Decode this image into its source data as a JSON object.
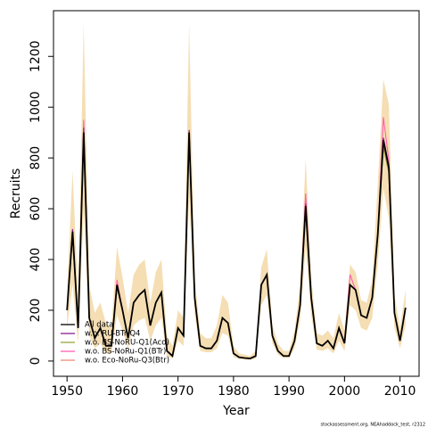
{
  "chart_data": {
    "type": "line",
    "xlabel": "Year",
    "ylabel": "Recruits",
    "footnote": "stockassessment.org, NEAhaddock_test, r2312",
    "x": [
      1950,
      1951,
      1952,
      1953,
      1954,
      1955,
      1956,
      1957,
      1958,
      1959,
      1960,
      1961,
      1962,
      1963,
      1964,
      1965,
      1966,
      1967,
      1968,
      1969,
      1970,
      1971,
      1972,
      1973,
      1974,
      1975,
      1976,
      1977,
      1978,
      1979,
      1980,
      1981,
      1982,
      1983,
      1984,
      1985,
      1986,
      1987,
      1988,
      1989,
      1990,
      1991,
      1992,
      1993,
      1994,
      1995,
      1996,
      1997,
      1998,
      1999,
      2000,
      2001,
      2002,
      2003,
      2004,
      2005,
      2006,
      2007,
      2008,
      2009,
      2010,
      2011
    ],
    "band": {
      "color": "#f5deb3",
      "upper": [
        280,
        750,
        250,
        1330,
        300,
        190,
        230,
        150,
        130,
        450,
        330,
        190,
        340,
        380,
        400,
        230,
        350,
        400,
        100,
        60,
        200,
        170,
        1330,
        330,
        110,
        90,
        90,
        140,
        260,
        230,
        60,
        30,
        25,
        20,
        40,
        370,
        440,
        140,
        70,
        40,
        40,
        120,
        300,
        800,
        330,
        110,
        100,
        120,
        90,
        190,
        120,
        380,
        350,
        240,
        230,
        320,
        700,
        1110,
        1010,
        260,
        130,
        280
      ],
      "lower": [
        130,
        300,
        70,
        600,
        100,
        50,
        70,
        30,
        30,
        180,
        120,
        50,
        140,
        160,
        170,
        80,
        140,
        170,
        20,
        10,
        80,
        60,
        650,
        180,
        40,
        35,
        35,
        50,
        110,
        100,
        15,
        8,
        6,
        5,
        10,
        220,
        260,
        70,
        25,
        12,
        12,
        50,
        160,
        450,
        180,
        45,
        40,
        50,
        30,
        80,
        40,
        220,
        200,
        130,
        120,
        170,
        380,
        680,
        560,
        130,
        50,
        140
      ]
    },
    "series": [
      {
        "name": "All data",
        "color": "#000000",
        "values": [
          200,
          510,
          130,
          900,
          170,
          90,
          130,
          60,
          60,
          300,
          200,
          90,
          230,
          260,
          280,
          140,
          230,
          270,
          40,
          20,
          130,
          100,
          900,
          250,
          60,
          50,
          50,
          80,
          170,
          150,
          30,
          15,
          12,
          10,
          20,
          300,
          340,
          100,
          40,
          20,
          20,
          80,
          220,
          610,
          250,
          70,
          60,
          80,
          50,
          130,
          70,
          300,
          280,
          180,
          170,
          250,
          500,
          870,
          760,
          190,
          80,
          210
        ]
      },
      {
        "name": "w.o. RU-BTr-Q4",
        "color": "#8b1e8f",
        "values": [
          200,
          520,
          130,
          920,
          170,
          90,
          130,
          60,
          60,
          300,
          200,
          90,
          230,
          260,
          280,
          140,
          230,
          270,
          40,
          20,
          130,
          100,
          910,
          250,
          60,
          50,
          50,
          80,
          170,
          150,
          30,
          15,
          12,
          10,
          20,
          300,
          340,
          100,
          40,
          20,
          20,
          80,
          220,
          620,
          250,
          70,
          60,
          80,
          50,
          130,
          70,
          300,
          280,
          180,
          170,
          250,
          500,
          880,
          770,
          190,
          80,
          210
        ]
      },
      {
        "name": "w.o. BS-NoRU-Q1(Aco)",
        "color": "#9aa33c",
        "values": [
          200,
          490,
          130,
          880,
          170,
          90,
          130,
          60,
          60,
          300,
          200,
          90,
          230,
          260,
          280,
          140,
          230,
          270,
          40,
          20,
          130,
          100,
          880,
          250,
          60,
          50,
          50,
          80,
          170,
          150,
          30,
          15,
          12,
          10,
          20,
          300,
          340,
          100,
          40,
          20,
          20,
          80,
          220,
          590,
          250,
          70,
          60,
          80,
          50,
          130,
          70,
          300,
          280,
          180,
          170,
          250,
          500,
          840,
          740,
          190,
          80,
          210
        ]
      },
      {
        "name": "w.o. BS-NoRu-Q1(BTr)",
        "color": "#ff5fb0",
        "values": [
          200,
          520,
          130,
          950,
          170,
          90,
          130,
          60,
          60,
          320,
          200,
          90,
          230,
          260,
          280,
          140,
          230,
          270,
          40,
          20,
          130,
          100,
          910,
          250,
          60,
          50,
          50,
          80,
          170,
          150,
          30,
          15,
          12,
          10,
          20,
          300,
          340,
          100,
          40,
          20,
          20,
          80,
          220,
          660,
          250,
          70,
          60,
          80,
          50,
          130,
          70,
          340,
          280,
          180,
          170,
          250,
          500,
          960,
          790,
          190,
          80,
          210
        ]
      },
      {
        "name": "w.o. Eco-NoRu-Q3(Btr)",
        "color": "#f08878",
        "values": [
          200,
          500,
          130,
          900,
          170,
          90,
          130,
          60,
          60,
          300,
          200,
          90,
          230,
          260,
          280,
          140,
          230,
          270,
          40,
          20,
          130,
          100,
          890,
          250,
          60,
          50,
          50,
          80,
          170,
          150,
          30,
          15,
          12,
          10,
          20,
          300,
          340,
          100,
          40,
          20,
          20,
          80,
          220,
          600,
          250,
          70,
          60,
          80,
          50,
          130,
          70,
          300,
          280,
          180,
          170,
          250,
          500,
          850,
          750,
          190,
          80,
          210
        ]
      }
    ],
    "xlim": [
      1947.56,
      2013.44
    ],
    "ylim": [
      -60,
      1380
    ],
    "xticks": [
      1950,
      1960,
      1970,
      1980,
      1990,
      2000,
      2010
    ],
    "yticks": [
      0,
      200,
      400,
      600,
      800,
      1000,
      1200
    ],
    "legend": "bottomleft"
  }
}
